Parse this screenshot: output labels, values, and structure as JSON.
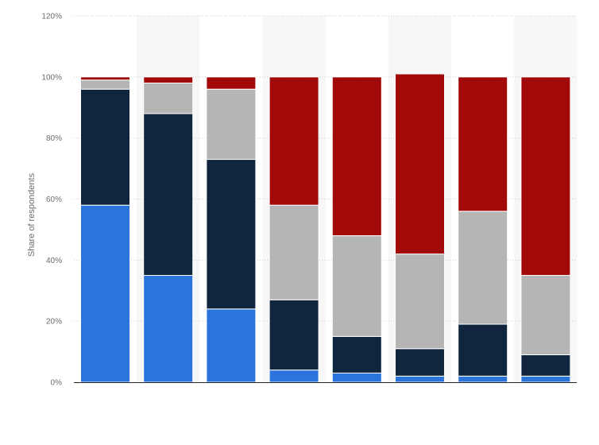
{
  "chart_data": {
    "type": "bar",
    "stacked": true,
    "title": "",
    "xlabel": "",
    "ylabel": "Share of respondents",
    "ylim": [
      0,
      120
    ],
    "y_ticks": [
      0,
      20,
      40,
      60,
      80,
      100,
      120
    ],
    "y_tick_labels": [
      "0%",
      "20%",
      "40%",
      "60%",
      "80%",
      "100%",
      "120%"
    ],
    "grid": true,
    "legend": "none",
    "categories": [
      "",
      "",
      "",
      "",
      "",
      "",
      "",
      ""
    ],
    "series": [
      {
        "color": "#2a74db",
        "values": [
          58,
          35,
          24,
          4,
          3,
          2,
          2,
          2
        ]
      },
      {
        "color": "#10263e",
        "values": [
          38,
          53,
          49,
          23,
          12,
          9,
          17,
          7
        ]
      },
      {
        "color": "#b5b5b5",
        "values": [
          3,
          10,
          23,
          31,
          33,
          31,
          37,
          26
        ]
      },
      {
        "color": "#a20a0a",
        "values": [
          1,
          2,
          4,
          42,
          52,
          59,
          44,
          65
        ]
      }
    ]
  }
}
